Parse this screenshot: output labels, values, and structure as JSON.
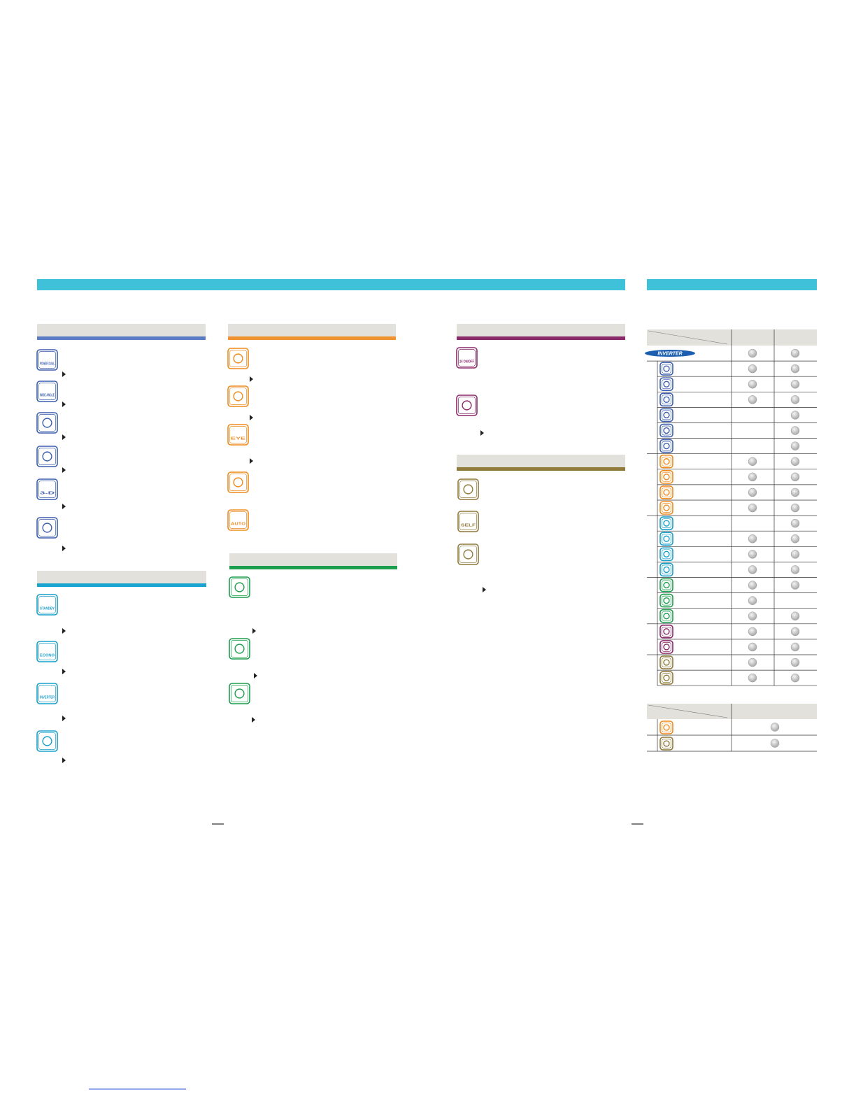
{
  "features": {
    "power_dual": "POWER DUAL",
    "wide_angle": "WIDE ANGLE",
    "three_d": "3-D",
    "standby": "STANDBY",
    "econo": "ECONO",
    "inverter": "INVERTER",
    "eye": "EYE",
    "auto": "AUTO",
    "timer": "24 ON/OFF",
    "self_clean": "SELF"
  },
  "table": {
    "logo": "INVERTER",
    "rows": [
      [
        true,
        true
      ],
      [
        true,
        true
      ],
      [
        true,
        true
      ],
      [
        true,
        true
      ],
      [
        false,
        true
      ],
      [
        false,
        true
      ],
      [
        false,
        true
      ],
      [
        true,
        true
      ],
      [
        true,
        true
      ],
      [
        true,
        true
      ],
      [
        true,
        true
      ],
      [
        false,
        true
      ],
      [
        true,
        true
      ],
      [
        true,
        true
      ],
      [
        true,
        true
      ],
      [
        true,
        true
      ],
      [
        true,
        false
      ],
      [
        true,
        true
      ],
      [
        true,
        true
      ],
      [
        true,
        true
      ],
      [
        true,
        true
      ],
      [
        true,
        true
      ]
    ],
    "extra_rows": [
      true,
      true
    ]
  }
}
